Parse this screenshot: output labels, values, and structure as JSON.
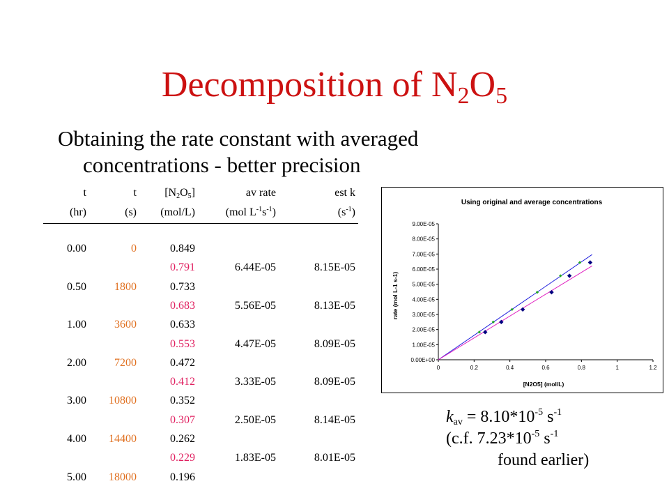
{
  "slide": {
    "title_main": "Decomposition of N",
    "title_sub1": "2",
    "title_mid": "O",
    "title_sub2": "5",
    "subtitle_line1": "Obtaining the rate constant with averaged",
    "subtitle_line2": "concentrations  - better precision"
  },
  "table": {
    "headers": {
      "t_hr_1": "t",
      "t_hr_2": "(hr)",
      "t_s_1": "t",
      "t_s_2": "(s)",
      "conc_1a": "[N",
      "conc_sub1": "2",
      "conc_1b": "O",
      "conc_sub2": "5",
      "conc_1c": "]",
      "conc_2": "(mol/L)",
      "rate_1": "av rate",
      "rate_2a": "(mol L",
      "rate_sup1": "-1",
      "rate_2b": "s",
      "rate_sup2": "-1",
      "rate_2c": ")",
      "k_1": "est k",
      "k_2a": "(s",
      "k_sup": "-1",
      "k_2b": ")"
    },
    "rows": [
      {
        "hr": "0.00",
        "s": "0",
        "conc": "0.849"
      },
      {
        "avg_conc": "0.791",
        "rate": "6.44E-05",
        "k": "8.15E-05"
      },
      {
        "hr": "0.50",
        "s": "1800",
        "conc": "0.733"
      },
      {
        "avg_conc": "0.683",
        "rate": "5.56E-05",
        "k": "8.13E-05"
      },
      {
        "hr": "1.00",
        "s": "3600",
        "conc": "0.633"
      },
      {
        "avg_conc": "0.553",
        "rate": "4.47E-05",
        "k": "8.09E-05"
      },
      {
        "hr": "2.00",
        "s": "7200",
        "conc": "0.472"
      },
      {
        "avg_conc": "0.412",
        "rate": "3.33E-05",
        "k": "8.09E-05"
      },
      {
        "hr": "3.00",
        "s": "10800",
        "conc": "0.352"
      },
      {
        "avg_conc": "0.307",
        "rate": "2.50E-05",
        "k": "8.14E-05"
      },
      {
        "hr": "4.00",
        "s": "14400",
        "conc": "0.262"
      },
      {
        "avg_conc": "0.229",
        "rate": "1.83E-05",
        "k": "8.01E-05"
      },
      {
        "hr": "5.00",
        "s": "18000",
        "conc": "0.196"
      }
    ]
  },
  "chart_data": {
    "type": "scatter",
    "title": "Using original and average concentrations",
    "xlabel": "[N2O5] (mol/L)",
    "ylabel": "rate (mol L-1 s-1)",
    "xlim": [
      0,
      1.2
    ],
    "ylim": [
      0,
      9e-05
    ],
    "x_ticks": [
      "0",
      "0.2",
      "0.4",
      "0.6",
      "0.8",
      "1",
      "1.2"
    ],
    "y_ticks": [
      "0.00E+00",
      "1.00E-05",
      "2.00E-05",
      "3.00E-05",
      "4.00E-05",
      "5.00E-05",
      "6.00E-05",
      "7.00E-05",
      "8.00E-05",
      "9.00E-05"
    ],
    "colors": {
      "original": "#000080",
      "average": "#22aa22",
      "line_blue": "#2222dd",
      "line_pink": "#e020c0"
    },
    "series": [
      {
        "x": [
          0.849,
          0.733,
          0.633,
          0.472,
          0.352,
          0.262
        ],
        "y": [
          6.44e-05,
          5.56e-05,
          4.47e-05,
          3.33e-05,
          2.5e-05,
          1.83e-05
        ],
        "marker": "diamond",
        "color": "#000080"
      },
      {
        "x": [
          0.791,
          0.683,
          0.553,
          0.412,
          0.307,
          0.229
        ],
        "y": [
          6.44e-05,
          5.56e-05,
          4.47e-05,
          3.33e-05,
          2.5e-05,
          1.83e-05
        ],
        "marker": "diamond-small",
        "color": "#22aa22"
      }
    ],
    "trendlines": [
      {
        "slope": 8.1e-05,
        "x_range": [
          0,
          0.86
        ],
        "color": "#2222dd"
      },
      {
        "slope": 7.23e-05,
        "x_range": [
          0,
          0.86
        ],
        "color": "#e020c0"
      }
    ]
  },
  "kav": {
    "k": "k",
    "k_sub": "av",
    "eq": " = 8.10*10",
    "exp1": "-5",
    "unit1": " s",
    "unitexp1": "-1",
    "line2a": "(c.f.  7.23*10",
    "exp2": "-5",
    "unit2": " s",
    "unitexp2": "-1",
    "line3": "found earlier)"
  }
}
